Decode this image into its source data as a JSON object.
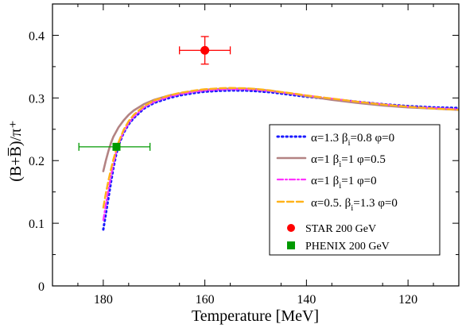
{
  "chart_data": {
    "type": "line",
    "xlabel": "Temperature [MeV]",
    "ylabel": "(B+B̅)/π⁺",
    "xlim": [
      190,
      110
    ],
    "ylim": [
      0,
      0.45
    ],
    "x_reversed": true,
    "x_ticks": [
      180,
      160,
      140,
      120
    ],
    "y_ticks": [
      0,
      0.1,
      0.2,
      0.3,
      0.4
    ],
    "x_tick_labels": [
      "180",
      "160",
      "140",
      "120"
    ],
    "y_tick_labels": [
      "0",
      "0.1",
      "0.2",
      "0.3",
      "0.4"
    ],
    "grid": false,
    "legend_position": "right",
    "series": [
      {
        "name": "α=1.3 βi=0.8 φ=0",
        "legend_parts": [
          "α=1.3 β",
          "i",
          "=0.8 φ=0"
        ],
        "color": "#1a1aff",
        "style": "dotted",
        "x": [
          180,
          179.5,
          179,
          178.5,
          178,
          177.5,
          177,
          176,
          175,
          174,
          172,
          170,
          167,
          165,
          162,
          160,
          157,
          155,
          152,
          150,
          147,
          145,
          142,
          140,
          135,
          130,
          125,
          120,
          115,
          110
        ],
        "y": [
          0.09,
          0.115,
          0.14,
          0.165,
          0.188,
          0.208,
          0.224,
          0.244,
          0.258,
          0.268,
          0.283,
          0.292,
          0.3,
          0.304,
          0.308,
          0.31,
          0.3115,
          0.312,
          0.3118,
          0.311,
          0.309,
          0.307,
          0.304,
          0.302,
          0.298,
          0.294,
          0.29,
          0.287,
          0.285,
          0.284
        ]
      },
      {
        "name": "α=1 βi=1 φ=0.5",
        "legend_parts": [
          "α=1 β",
          "i",
          "=1 φ=0.5"
        ],
        "color": "#b38383",
        "style": "solid",
        "x": [
          180,
          179.5,
          179,
          178.5,
          178,
          177,
          176,
          175,
          174,
          172,
          170,
          167,
          165,
          162,
          160,
          157,
          155,
          152,
          150,
          147,
          145,
          142,
          140,
          135,
          130,
          125,
          120,
          115,
          110
        ],
        "y": [
          0.183,
          0.2,
          0.215,
          0.228,
          0.238,
          0.253,
          0.264,
          0.273,
          0.28,
          0.29,
          0.297,
          0.304,
          0.307,
          0.311,
          0.313,
          0.3145,
          0.315,
          0.3148,
          0.314,
          0.3115,
          0.309,
          0.306,
          0.303,
          0.297,
          0.292,
          0.288,
          0.285,
          0.283,
          0.281
        ]
      },
      {
        "name": "α=1 βi=1 φ=0",
        "legend_parts": [
          "α=1 β",
          "i",
          "=1 φ=0"
        ],
        "color": "#ff33ff",
        "style": "dashdot",
        "x": [
          180,
          179.5,
          179,
          178.5,
          178,
          177.5,
          177,
          176,
          175,
          174,
          172,
          170,
          167,
          165,
          162,
          160,
          157,
          155,
          152,
          150,
          147,
          145,
          142,
          140,
          135,
          130,
          125,
          120,
          115,
          110
        ],
        "y": [
          0.105,
          0.13,
          0.153,
          0.175,
          0.195,
          0.212,
          0.226,
          0.246,
          0.26,
          0.27,
          0.285,
          0.294,
          0.302,
          0.306,
          0.31,
          0.312,
          0.3135,
          0.314,
          0.3138,
          0.313,
          0.311,
          0.309,
          0.306,
          0.304,
          0.299,
          0.294,
          0.29,
          0.286,
          0.284,
          0.282
        ]
      },
      {
        "name": "α=0.5. βi=1.3 φ=0",
        "legend_parts": [
          "α=0.5. β",
          "i",
          "=1.3 φ=0"
        ],
        "color": "#ffb31a",
        "style": "dashed",
        "x": [
          180,
          179.5,
          179,
          178.5,
          178,
          177.5,
          177,
          176,
          175,
          174,
          172,
          170,
          167,
          165,
          162,
          160,
          157,
          155,
          152,
          150,
          147,
          145,
          142,
          140,
          135,
          130,
          125,
          120,
          115,
          110
        ],
        "y": [
          0.125,
          0.148,
          0.168,
          0.186,
          0.202,
          0.216,
          0.229,
          0.249,
          0.263,
          0.273,
          0.287,
          0.296,
          0.304,
          0.308,
          0.312,
          0.314,
          0.3155,
          0.316,
          0.3155,
          0.3145,
          0.312,
          0.3095,
          0.3065,
          0.304,
          0.299,
          0.294,
          0.2895,
          0.286,
          0.283,
          0.281
        ]
      }
    ],
    "points": [
      {
        "name": "STAR 200 GeV",
        "color": "#ff0000",
        "marker": "circle",
        "x": 160,
        "y": 0.376,
        "x_err": [
          5,
          5
        ],
        "y_err": [
          0.022,
          0.022
        ]
      },
      {
        "name": "PHENIX 200 GeV",
        "color": "#009900",
        "marker": "square",
        "x": 177.4,
        "y": 0.222,
        "x_err": [
          6.6,
          7.4
        ],
        "y_err": [
          0.004,
          0.004
        ]
      }
    ]
  }
}
